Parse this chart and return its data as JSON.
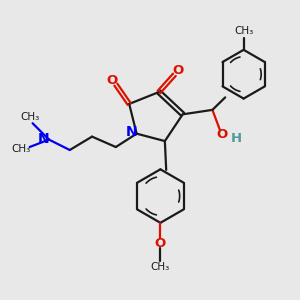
{
  "bg_color": "#e8e8e8",
  "bond_color": "#1a1a1a",
  "N_color": "#0000ee",
  "O_color": "#dd1100",
  "OH_color": "#4d9999",
  "figsize": [
    3.0,
    3.0
  ],
  "dpi": 100,
  "xlim": [
    0,
    10
  ],
  "ylim": [
    0,
    10
  ],
  "lw": 1.6,
  "lw_inner": 1.2
}
